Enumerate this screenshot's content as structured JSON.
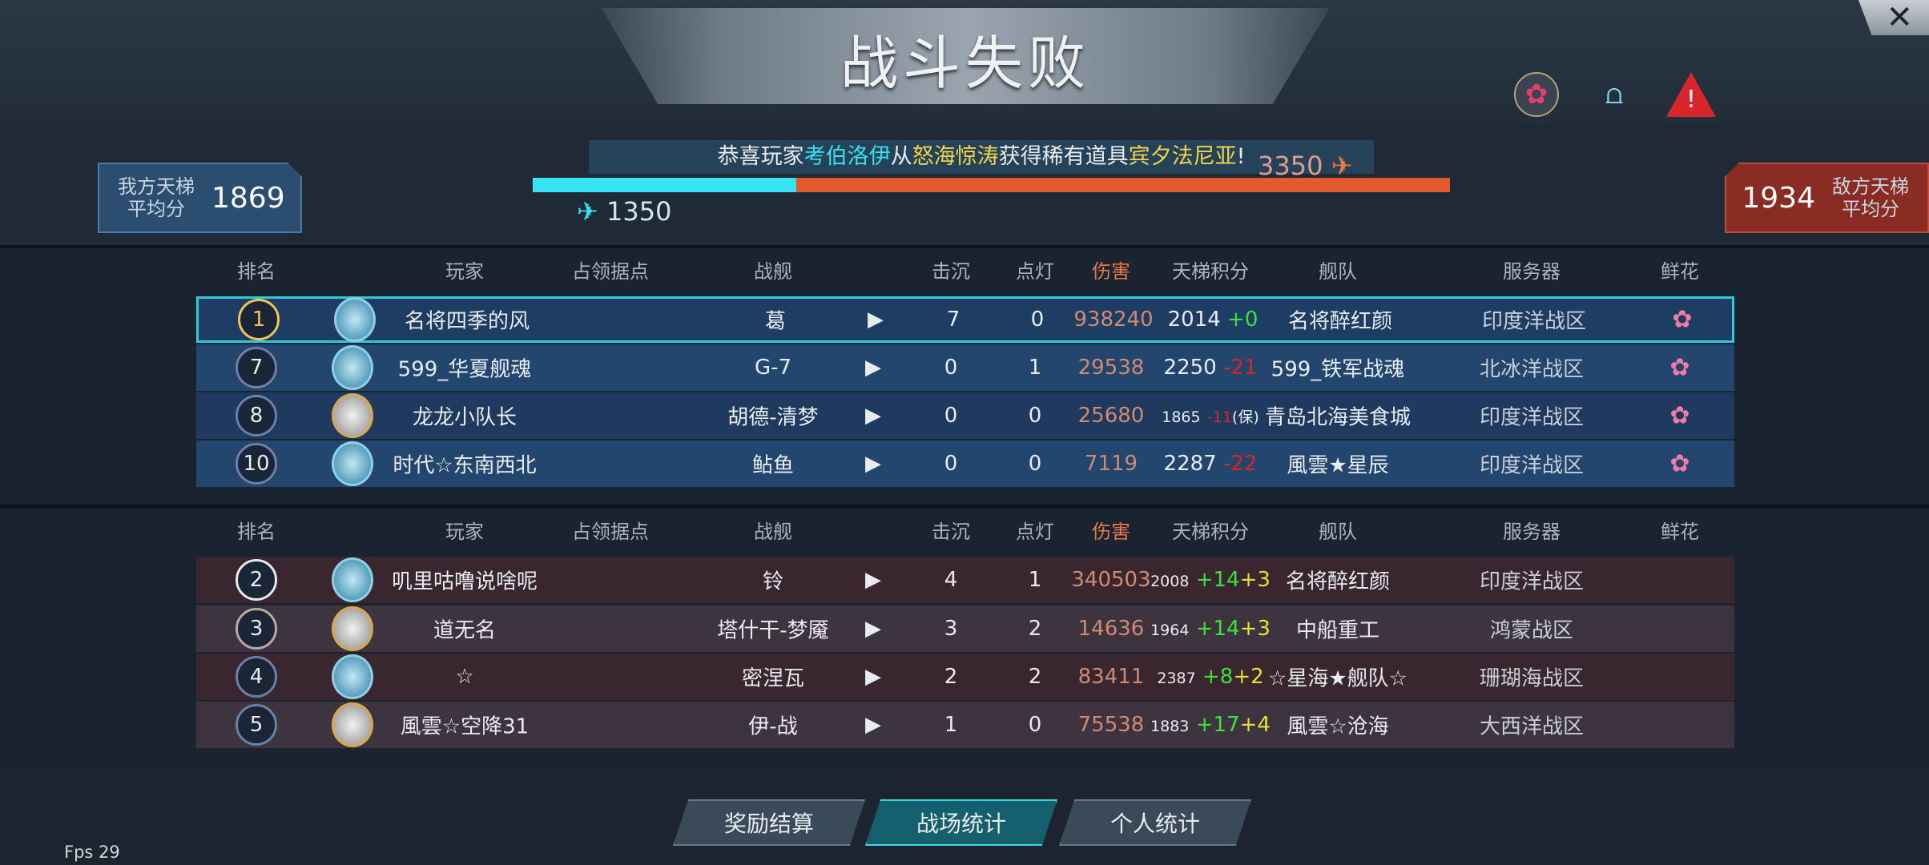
{
  "title": "战斗失败",
  "top_icons": [
    "rose-icon",
    "flip-flops-icon",
    "warning-icon"
  ],
  "close_label": "✕",
  "our_avg": {
    "label": "我方天梯平均分",
    "value": "1869"
  },
  "enemy_avg": {
    "label": "敌方天梯平均分",
    "value": "1934"
  },
  "score_compare": {
    "our": "1350",
    "enemy": "3350",
    "our_fraction": 0.2875
  },
  "banner": {
    "prefix": "恭喜玩家",
    "player": "考伯洛伊",
    "mid": "从",
    "source": "怒海惊涛",
    "mid2": "获得稀有道具",
    "item": "宾夕法尼亚",
    "suffix": "!"
  },
  "columns": [
    "排名",
    "玩家",
    "占领据点",
    "战舰",
    "击沉",
    "点灯",
    "伤害",
    "天梯积分",
    "舰队",
    "服务器",
    "鲜花"
  ],
  "our_team": [
    {
      "rank": "1",
      "player": "名将四季的风",
      "ship": "葛",
      "sinks": "7",
      "spots": "0",
      "damage": "938240",
      "ladder": "2014",
      "delta": "+0",
      "delta2": "",
      "fleet": "名将醉红颜",
      "server": "印度洋战区",
      "flower": true,
      "avatar": "blue"
    },
    {
      "rank": "7",
      "player": "599_华夏舰魂",
      "ship": "G-7",
      "sinks": "0",
      "spots": "1",
      "damage": "29538",
      "ladder": "2250",
      "delta": "-21",
      "delta2": "",
      "fleet": "599_铁军战魂",
      "server": "北冰洋战区",
      "flower": true,
      "avatar": "blue"
    },
    {
      "rank": "8",
      "player": "龙龙小队长",
      "ship": "胡德-清梦",
      "sinks": "0",
      "spots": "0",
      "damage": "25680",
      "ladder": "1865",
      "delta": "-11",
      "delta2": "(保)",
      "fleet": "青岛北海美食城",
      "server": "印度洋战区",
      "flower": true,
      "avatar": "gold"
    },
    {
      "rank": "10",
      "player": "时代☆东南西北",
      "ship": "鲇鱼",
      "sinks": "0",
      "spots": "0",
      "damage": "7119",
      "ladder": "2287",
      "delta": "-22",
      "delta2": "",
      "fleet": "風雲★星辰",
      "server": "印度洋战区",
      "flower": true,
      "avatar": "blue"
    }
  ],
  "enemy_team": [
    {
      "rank": "2",
      "player": "叽里咕噜说啥呢",
      "ship": "铃",
      "sinks": "4",
      "spots": "1",
      "damage": "340503",
      "ladder": "2008",
      "delta": "+14",
      "delta2": "+3",
      "fleet": "名将醉红颜",
      "server": "印度洋战区",
      "avatar": "blue"
    },
    {
      "rank": "3",
      "player": "道无名",
      "ship": "塔什干-梦魇",
      "sinks": "3",
      "spots": "2",
      "damage": "14636",
      "ladder": "1964",
      "delta": "+14",
      "delta2": "+3",
      "fleet": "中船重工",
      "server": "鸿蒙战区",
      "avatar": "gold"
    },
    {
      "rank": "4",
      "player": "☆",
      "ship": "密涅瓦",
      "sinks": "2",
      "spots": "2",
      "damage": "83411",
      "ladder": "2387",
      "delta": "+8",
      "delta2": "+2",
      "fleet": "☆星海★舰队☆",
      "server": "珊瑚海战区",
      "avatar": "blue"
    },
    {
      "rank": "5",
      "player": "風雲☆空降31",
      "ship": "伊-战",
      "sinks": "1",
      "spots": "0",
      "damage": "75538",
      "ladder": "1883",
      "delta": "+17",
      "delta2": "+4",
      "fleet": "風雲☆沧海",
      "server": "大西洋战区",
      "avatar": "gold"
    }
  ],
  "tabs": [
    {
      "label": "奖励结算",
      "active": false
    },
    {
      "label": "战场统计",
      "active": true
    },
    {
      "label": "个人统计",
      "active": false
    }
  ],
  "fps": "Fps 29"
}
